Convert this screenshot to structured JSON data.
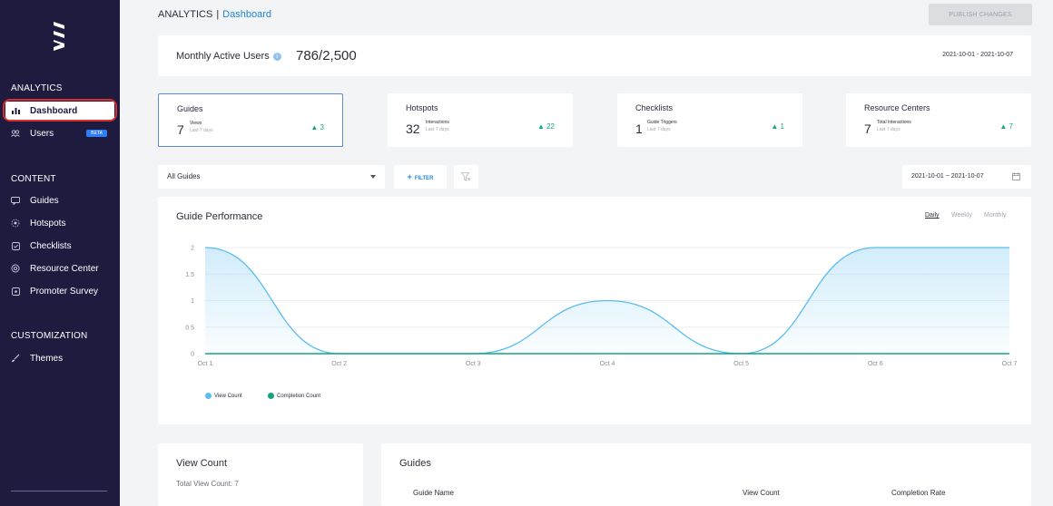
{
  "sidebar": {
    "sections": [
      {
        "title": "ANALYTICS",
        "items": [
          {
            "label": "Dashboard",
            "icon": "bar-chart-icon",
            "active": true
          },
          {
            "label": "Users",
            "icon": "users-icon",
            "badge": "BETA"
          }
        ]
      },
      {
        "title": "CONTENT",
        "items": [
          {
            "label": "Guides",
            "icon": "guide-icon"
          },
          {
            "label": "Hotspots",
            "icon": "hotspot-icon"
          },
          {
            "label": "Checklists",
            "icon": "checklist-icon"
          },
          {
            "label": "Resource Center",
            "icon": "resource-center-icon"
          },
          {
            "label": "Promoter Survey",
            "icon": "survey-icon"
          }
        ]
      },
      {
        "title": "CUSTOMIZATION",
        "items": [
          {
            "label": "Themes",
            "icon": "brush-icon"
          }
        ]
      }
    ]
  },
  "header": {
    "section": "ANALYTICS",
    "separator": "|",
    "page": "Dashboard",
    "publish_label": "PUBLISH CHANGES"
  },
  "mau": {
    "label": "Monthly Active Users",
    "value": "786/2,500",
    "date_range": "2021-10-01 - 2021-10-07"
  },
  "stats": [
    {
      "title": "Guides",
      "number": "7",
      "metric": "Views",
      "period": "Last 7 days",
      "delta": "▲ 3",
      "selected": true
    },
    {
      "title": "Hotspots",
      "number": "32",
      "metric": "Interactions",
      "period": "Last 7 days",
      "delta": "▲ 22"
    },
    {
      "title": "Checklists",
      "number": "1",
      "metric": "Guide Triggers",
      "period": "Last 7 days",
      "delta": "▲ 1"
    },
    {
      "title": "Resource Centers",
      "number": "7",
      "metric": "Total Interactions",
      "period": "Last 7 days",
      "delta": "▲ 7"
    }
  ],
  "filters": {
    "select_value": "All Guides",
    "filter_label": "FILTER",
    "date_range": "2021-10-01 ~ 2021-10-07"
  },
  "performance": {
    "title": "Guide Performance",
    "periods": [
      "Daily",
      "Weekly",
      "Monthly"
    ],
    "active_period": "Daily"
  },
  "chart_data": {
    "type": "area",
    "categories": [
      "Oct 1",
      "Oct 2",
      "Oct 3",
      "Oct 4",
      "Oct 5",
      "Oct 6",
      "Oct 7"
    ],
    "y_ticks": [
      "2",
      "1.5",
      "1",
      "0.5",
      "0"
    ],
    "ylim": [
      0,
      2
    ],
    "grid": true,
    "series": [
      {
        "name": "View Count",
        "values": [
          2,
          0,
          0,
          1,
          0,
          2,
          2
        ],
        "color": "#5bbcf0"
      },
      {
        "name": "Completion Count",
        "values": [
          0,
          0,
          0,
          0,
          0,
          0,
          0
        ],
        "color": "#15a382"
      }
    ],
    "legend_position": "bottom-left"
  },
  "view_count": {
    "title": "View Count",
    "total": "Total View Count: 7"
  },
  "guides_table": {
    "title": "Guides",
    "columns": [
      "Guide Name",
      "View Count",
      "Completion Rate"
    ]
  }
}
